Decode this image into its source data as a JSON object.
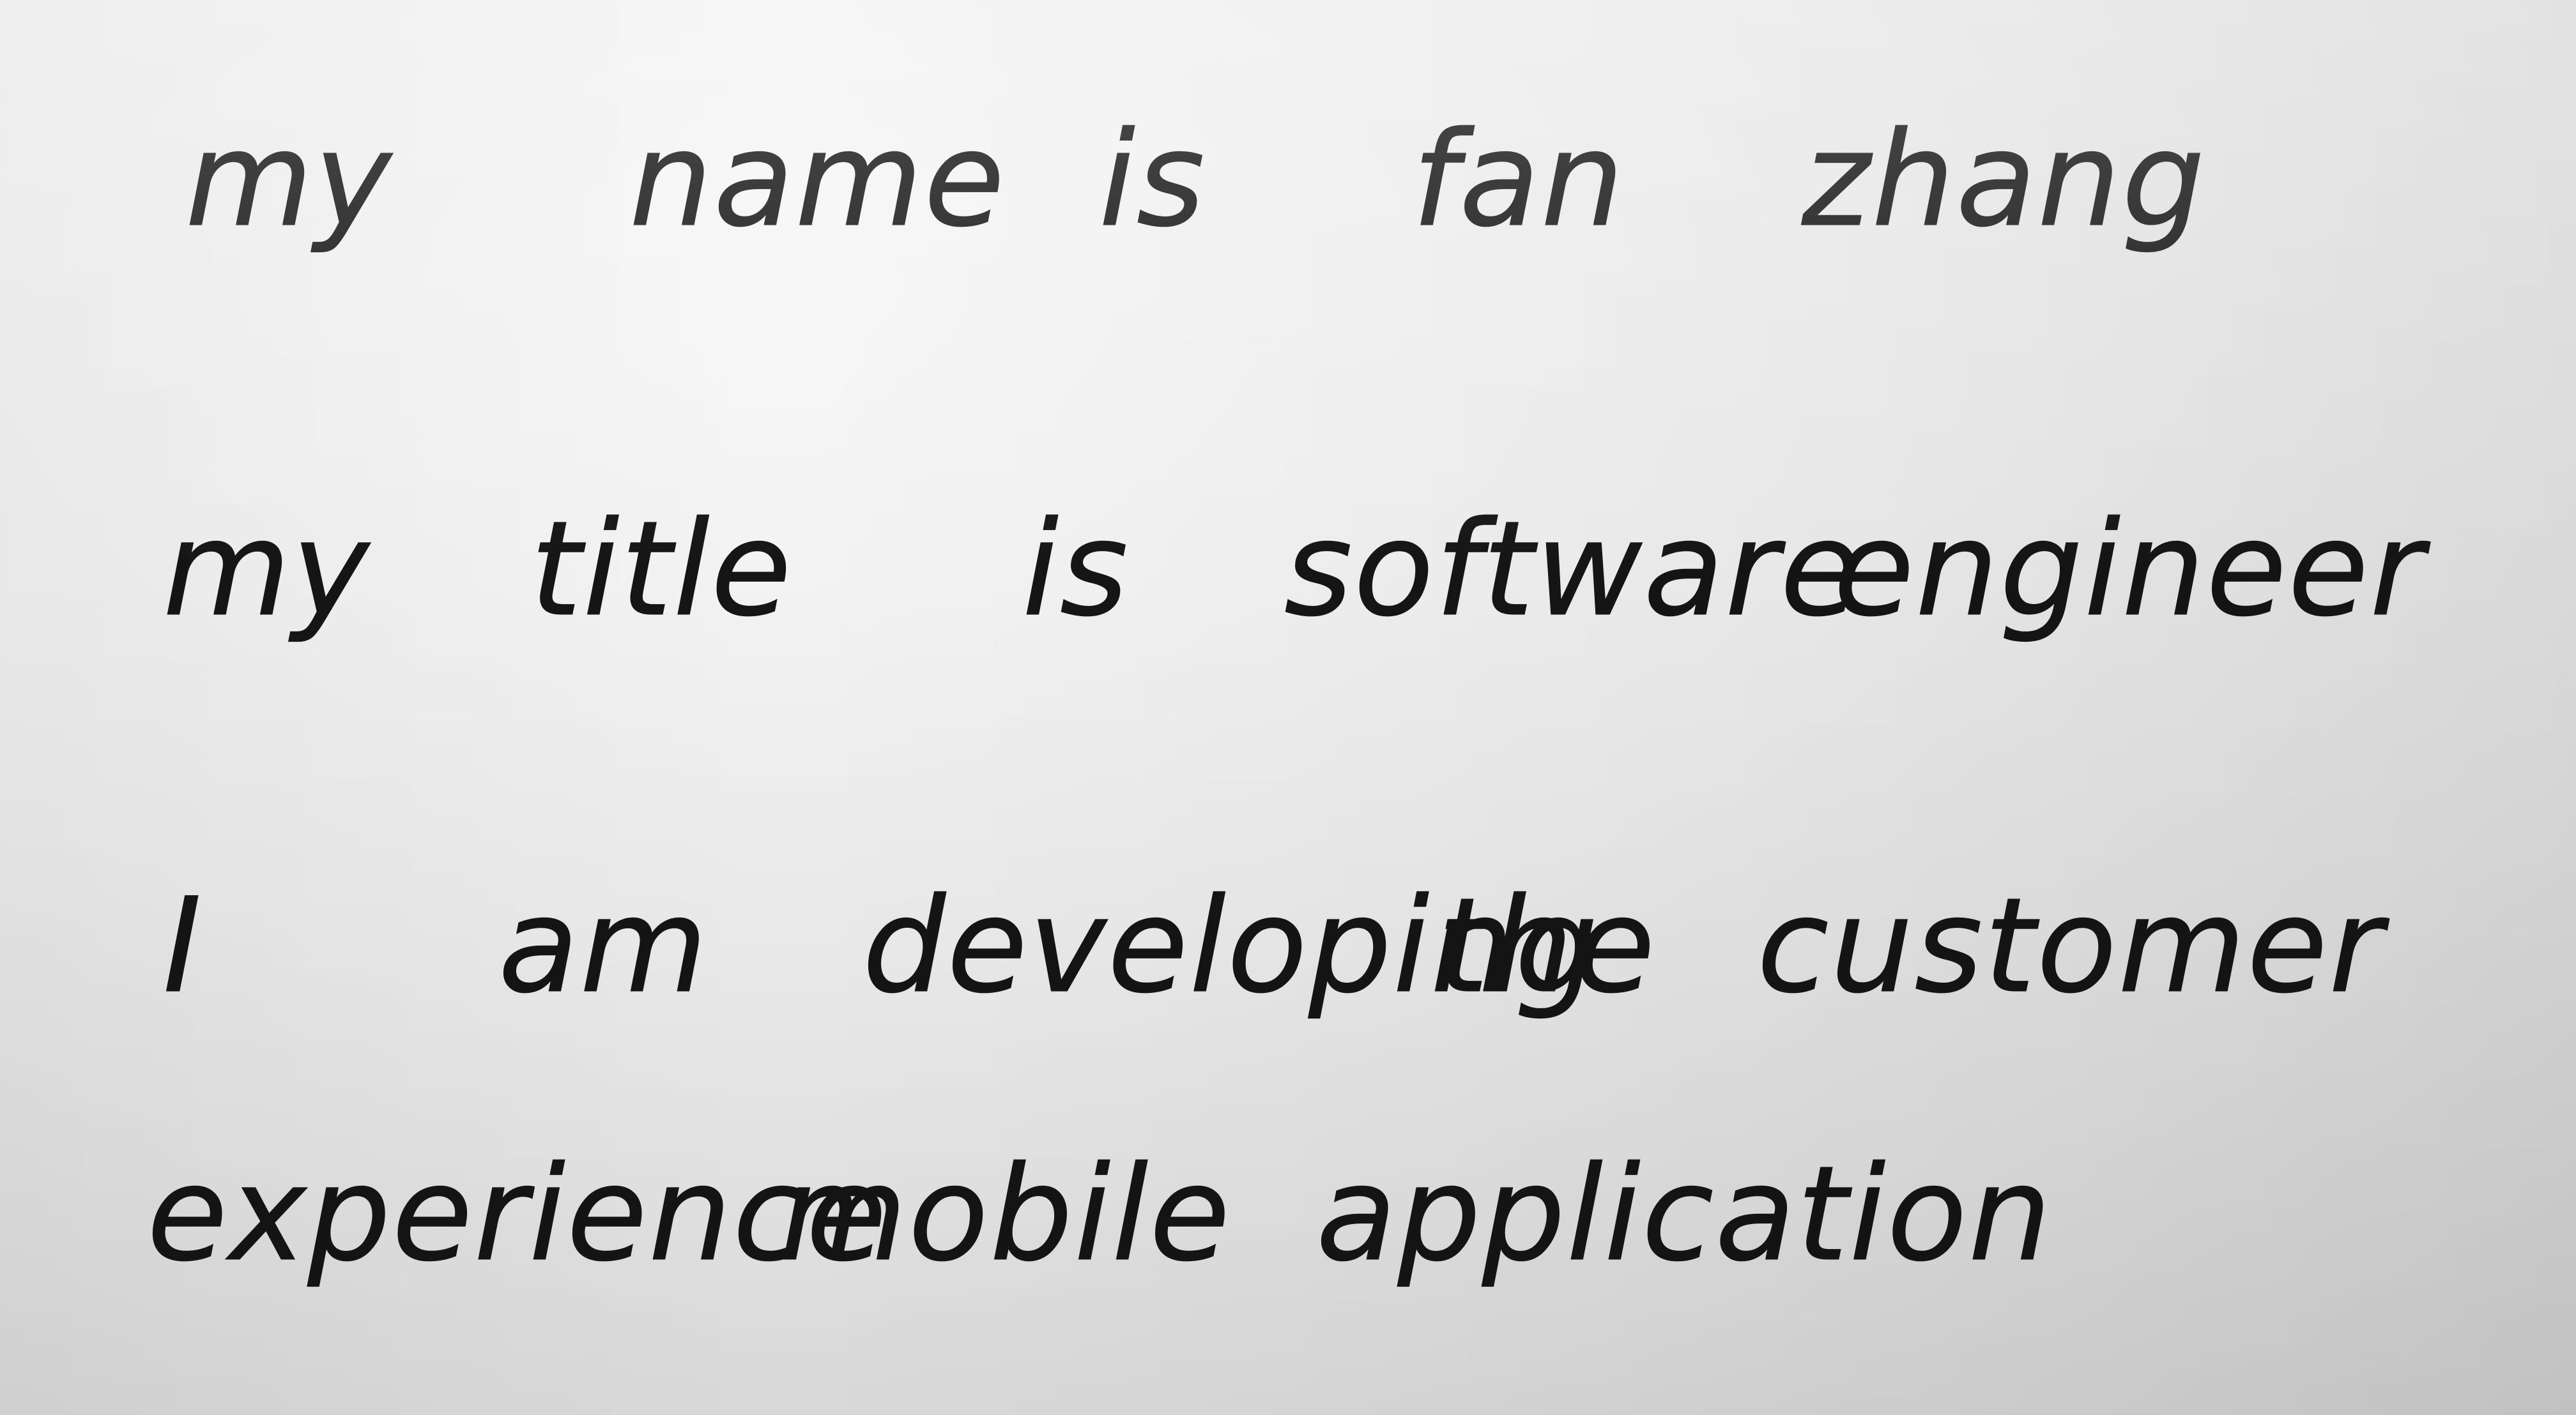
{
  "page": {
    "line1": [
      "my",
      "name",
      "is",
      "fan",
      "zhang"
    ],
    "line2": [
      "my",
      "title",
      "is",
      "software",
      "engineer"
    ],
    "line3": [
      "I",
      "am",
      "developing",
      "the",
      "customer"
    ],
    "line4": [
      "experience",
      "mobile",
      "application"
    ]
  },
  "ink_color": "#151515",
  "paper_color": "#eeeeee"
}
